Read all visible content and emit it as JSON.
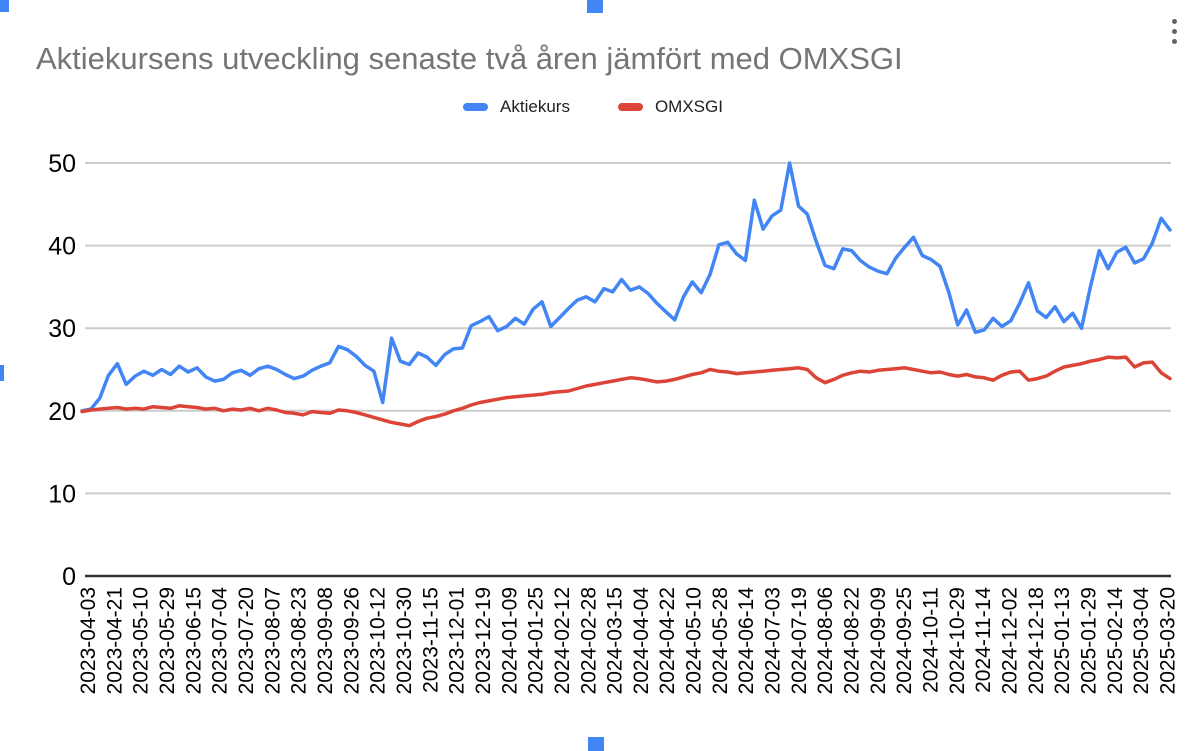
{
  "header": {
    "title": "Aktiekursens utveckling senaste två åren jämfört med OMXSGI",
    "title_color": "#757575",
    "menu_icon": "kebab-vertical-dots",
    "menu_icon_color": "#5f6368"
  },
  "legend": {
    "position": "top-center",
    "items": [
      {
        "label": "Aktiekurs",
        "color": "#4285f4"
      },
      {
        "label": "OMXSGI",
        "color": "#db4437"
      }
    ]
  },
  "selection": {
    "handle_color": "#4285f4",
    "handles": [
      "top-left",
      "top-center",
      "left-middle",
      "bottom-center"
    ]
  },
  "chart_data": {
    "type": "line",
    "title": "Aktiekursens utveckling senaste två åren jämfört med OMXSGI",
    "legend_position": "top",
    "grid": true,
    "gridline_color": "#cccccc",
    "baseline_color": "#333333",
    "axis_text_color": "#000000",
    "ylim": [
      0,
      50
    ],
    "y_ticks": [
      0,
      10,
      20,
      30,
      40,
      50
    ],
    "points_per_label_interval": 3,
    "x_labels": [
      "2023-04-03",
      "2023-04-21",
      "2023-05-10",
      "2023-05-29",
      "2023-06-15",
      "2023-07-04",
      "2023-07-20",
      "2023-08-07",
      "2023-08-23",
      "2023-09-08",
      "2023-09-26",
      "2023-10-12",
      "2023-10-30",
      "2023-11-15",
      "2023-12-01",
      "2023-12-19",
      "2024-01-09",
      "2024-01-25",
      "2024-02-12",
      "2024-02-28",
      "2024-03-15",
      "2024-04-04",
      "2024-04-22",
      "2024-05-10",
      "2024-05-28",
      "2024-06-14",
      "2024-07-03",
      "2024-07-19",
      "2024-08-06",
      "2024-08-22",
      "2024-09-09",
      "2024-09-25",
      "2024-10-11",
      "2024-10-29",
      "2024-11-14",
      "2024-12-02",
      "2024-12-18",
      "2025-01-13",
      "2025-01-29",
      "2025-02-14",
      "2025-03-04",
      "2025-03-20"
    ],
    "series": [
      {
        "name": "Aktiekurs",
        "color": "#4285f4",
        "values": [
          20.0,
          20.2,
          21.5,
          24.3,
          25.7,
          23.2,
          24.2,
          24.8,
          24.3,
          25.0,
          24.4,
          25.4,
          24.7,
          25.2,
          24.1,
          23.6,
          23.8,
          24.6,
          24.9,
          24.3,
          25.1,
          25.4,
          25.0,
          24.4,
          23.9,
          24.2,
          24.9,
          25.4,
          25.8,
          27.8,
          27.4,
          26.6,
          25.5,
          24.8,
          21.0,
          28.8,
          26.0,
          25.6,
          27.0,
          26.5,
          25.5,
          26.8,
          27.5,
          27.6,
          30.3,
          30.8,
          31.4,
          29.7,
          30.2,
          31.2,
          30.5,
          32.3,
          33.2,
          30.2,
          31.3,
          32.4,
          33.4,
          33.8,
          33.2,
          34.8,
          34.4,
          35.9,
          34.6,
          35.0,
          34.2,
          33.0,
          32.0,
          31.0,
          33.8,
          35.6,
          34.3,
          36.5,
          40.1,
          40.4,
          39.0,
          38.2,
          45.5,
          42.0,
          43.6,
          44.3,
          50.0,
          44.8,
          43.8,
          40.5,
          37.6,
          37.2,
          39.6,
          39.4,
          38.2,
          37.4,
          36.9,
          36.6,
          38.5,
          39.8,
          41.0,
          38.8,
          38.3,
          37.5,
          34.3,
          30.4,
          32.2,
          29.5,
          29.8,
          31.2,
          30.2,
          30.9,
          33.0,
          35.5,
          32.1,
          31.3,
          32.6,
          30.8,
          31.8,
          30.0,
          35.0,
          39.4,
          37.2,
          39.2,
          39.8,
          37.9,
          38.4,
          40.3,
          43.3,
          41.9
        ]
      },
      {
        "name": "OMXSGI",
        "color": "#db4437",
        "values": [
          19.9,
          20.1,
          20.2,
          20.3,
          20.4,
          20.2,
          20.3,
          20.2,
          20.5,
          20.4,
          20.3,
          20.6,
          20.5,
          20.4,
          20.2,
          20.3,
          20.0,
          20.2,
          20.1,
          20.3,
          20.0,
          20.3,
          20.1,
          19.8,
          19.7,
          19.5,
          19.9,
          19.8,
          19.7,
          20.1,
          20.0,
          19.8,
          19.5,
          19.2,
          18.9,
          18.6,
          18.4,
          18.2,
          18.7,
          19.1,
          19.3,
          19.6,
          20.0,
          20.3,
          20.7,
          21.0,
          21.2,
          21.4,
          21.6,
          21.7,
          21.8,
          21.9,
          22.0,
          22.2,
          22.3,
          22.4,
          22.7,
          23.0,
          23.2,
          23.4,
          23.6,
          23.8,
          24.0,
          23.9,
          23.7,
          23.5,
          23.6,
          23.8,
          24.1,
          24.4,
          24.6,
          25.0,
          24.8,
          24.7,
          24.5,
          24.6,
          24.7,
          24.8,
          24.9,
          25.0,
          25.1,
          25.2,
          25.0,
          24.0,
          23.4,
          23.8,
          24.3,
          24.6,
          24.8,
          24.7,
          24.9,
          25.0,
          25.1,
          25.2,
          25.0,
          24.8,
          24.6,
          24.7,
          24.4,
          24.2,
          24.4,
          24.1,
          24.0,
          23.7,
          24.3,
          24.7,
          24.8,
          23.7,
          23.9,
          24.2,
          24.8,
          25.3,
          25.5,
          25.7,
          26.0,
          26.2,
          26.5,
          26.4,
          26.5,
          25.3,
          25.8,
          25.9,
          24.6,
          23.9
        ]
      }
    ]
  }
}
